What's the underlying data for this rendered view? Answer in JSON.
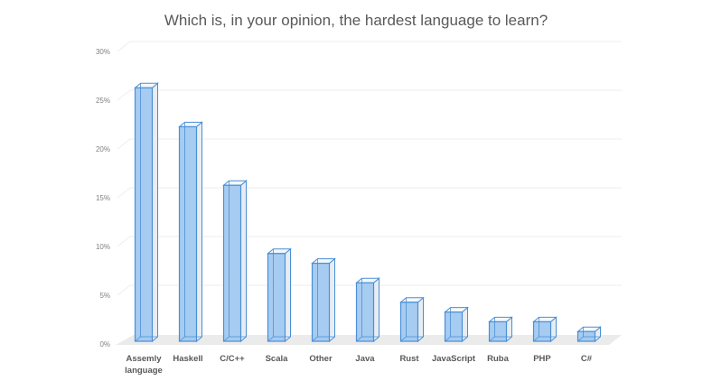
{
  "chart_data": {
    "type": "bar",
    "style": "3d-column",
    "title": "Which is, in your opinion, the hardest language to learn?",
    "categories": [
      [
        "Assemly",
        "language"
      ],
      [
        "Haskell"
      ],
      [
        "C/C++"
      ],
      [
        "Scala"
      ],
      [
        "Other"
      ],
      [
        "Java"
      ],
      [
        "Rust"
      ],
      [
        "JavaScript"
      ],
      [
        "Ruba"
      ],
      [
        "PHP"
      ],
      [
        "C#"
      ]
    ],
    "values": [
      26,
      22,
      16,
      9,
      8,
      6,
      4,
      3,
      2,
      2,
      1
    ],
    "value_unit": "%",
    "ylim": [
      0,
      30
    ],
    "yticks": [
      "0%",
      "5%",
      "10%",
      "15%",
      "20%",
      "25%",
      "30%"
    ],
    "grid": true,
    "legend": "none",
    "colors": {
      "bar_fill": "#9dc7ef",
      "bar_edge": "#4a8fd6",
      "side_fill": "#e8edf2",
      "floor": "#ebebeb",
      "grid": "#eeeeee"
    }
  }
}
